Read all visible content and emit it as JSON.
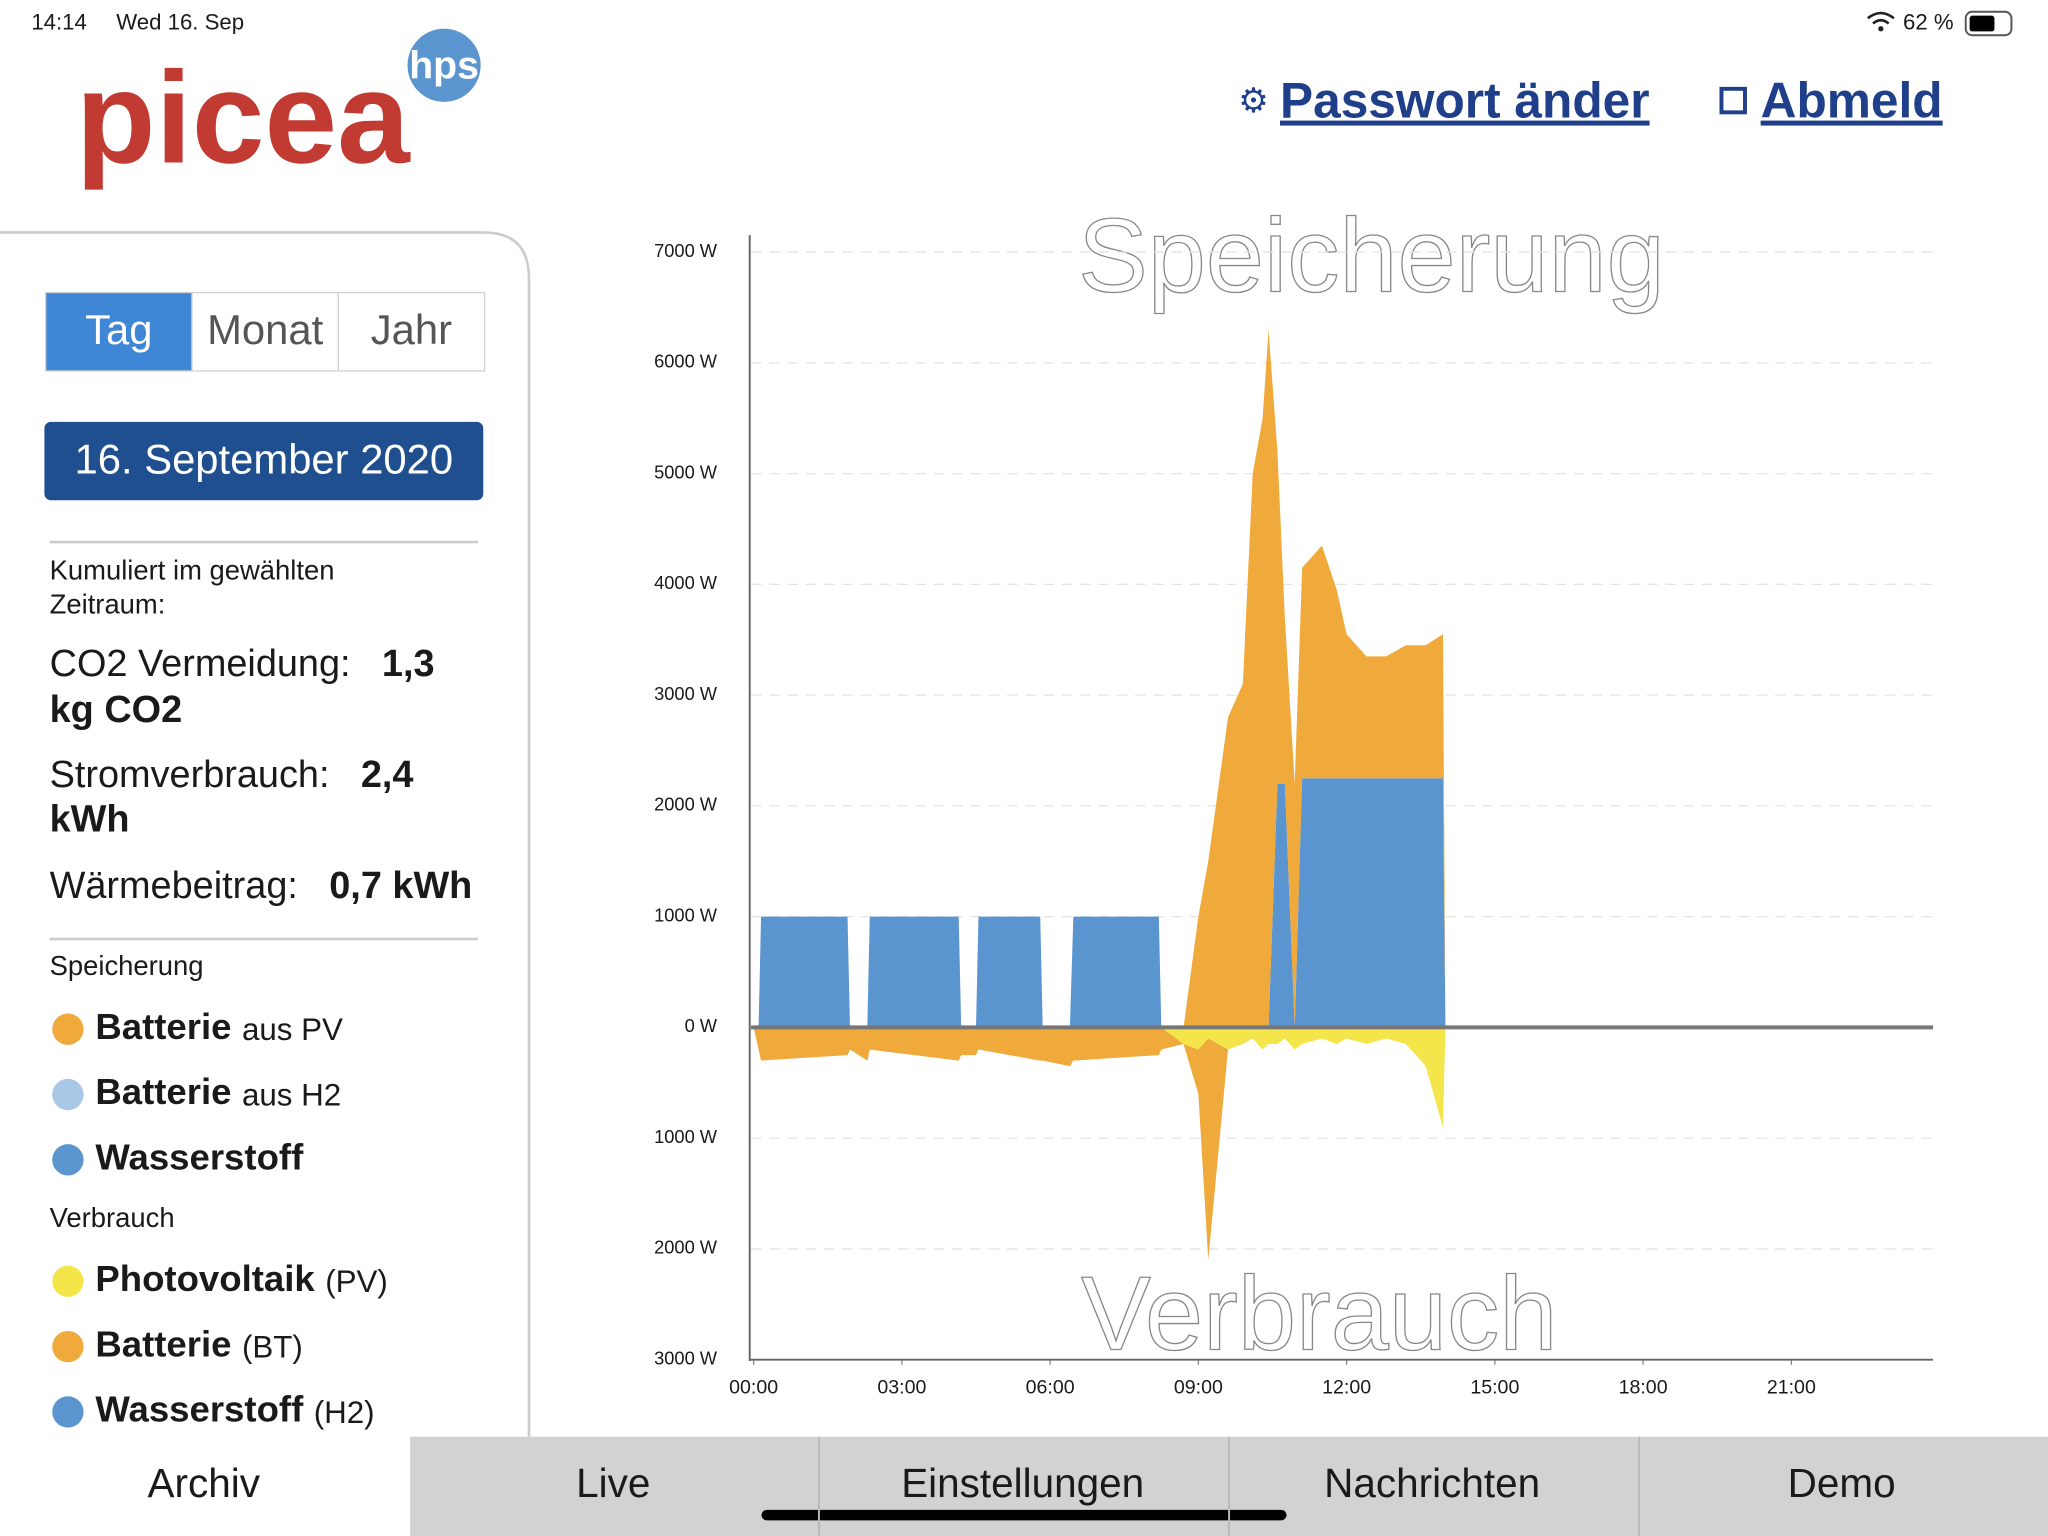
{
  "status_bar": {
    "time": "14:14",
    "date": "Wed 16. Sep",
    "battery": "62 %"
  },
  "header": {
    "logo": "picea",
    "logo_badge": "hps",
    "links": [
      "Passwort änder",
      "Abmeld"
    ]
  },
  "sidebar": {
    "tabs": [
      "Tag",
      "Monat",
      "Jahr"
    ],
    "date": "16. September 2020",
    "summary_label": [
      "Kumuliert im gewählten",
      "Zeitraum:"
    ],
    "stats": [
      {
        "label": "CO2 Vermeidung:",
        "value": "1,3",
        "unit": "kg CO2"
      },
      {
        "label": "Stromverbrauch:",
        "value": "2,4",
        "unit": "kWh"
      },
      {
        "label": "Wärmebeitrag:",
        "value": "0,7 kWh"
      }
    ],
    "legend_groups": [
      {
        "title": "Speicherung",
        "items": [
          {
            "name": "Batterie",
            "detail": "aus PV",
            "color": "#f0a93b"
          },
          {
            "name": "Batterie",
            "detail": "aus H2",
            "color": "#a9c8e8"
          },
          {
            "name": "Wasserstoff",
            "color": "#5b95d0"
          }
        ]
      },
      {
        "title": "Verbrauch",
        "items": [
          {
            "name": "Photovoltaik",
            "detail": "(PV)",
            "color": "#f4e64a"
          },
          {
            "name": "Batterie",
            "detail": "(BT)",
            "color": "#f0a93b"
          },
          {
            "name": "Wasserstoff",
            "detail": "(H2)",
            "color": "#5b95d0"
          }
        ]
      }
    ]
  },
  "chart_data": {
    "type": "area",
    "title": "Speicherung",
    "bottom_label": "Verbrauch",
    "grid": true,
    "xlim": [
      0,
      24
    ],
    "xticks": [
      {
        "value": 0,
        "label": "00:00"
      },
      {
        "value": 3,
        "label": "03:00"
      },
      {
        "value": 6,
        "label": "06:00"
      },
      {
        "value": 9,
        "label": "09:00"
      },
      {
        "value": 12,
        "label": "12:00"
      },
      {
        "value": 15,
        "label": "15:00"
      },
      {
        "value": 18,
        "label": "18:00"
      },
      {
        "value": 21,
        "label": "21:00"
      }
    ],
    "ylim": [
      -3000,
      7000
    ],
    "yticks": [
      {
        "value": -3000,
        "label": "3000 W"
      },
      {
        "value": -2000,
        "label": "2000 W"
      },
      {
        "value": -1000,
        "label": "1000 W"
      },
      {
        "value": 0,
        "label": "0 W"
      },
      {
        "value": 1000,
        "label": "1000 W"
      },
      {
        "value": 2000,
        "label": "2000 W"
      },
      {
        "value": 3000,
        "label": "3000 W"
      },
      {
        "value": 4000,
        "label": "4000 W"
      },
      {
        "value": 5000,
        "label": "5000 W"
      },
      {
        "value": 6000,
        "label": "6000 W"
      },
      {
        "value": 7000,
        "label": "7000 W"
      }
    ],
    "x": [
      0,
      0.1,
      0.15,
      1.9,
      1.95,
      2.3,
      2.35,
      4.15,
      4.2,
      4.5,
      4.55,
      5.8,
      5.85,
      6.4,
      6.47,
      8.2,
      8.25,
      8.7,
      9.0,
      9.2,
      9.6,
      9.9,
      10.1,
      10.3,
      10.42,
      10.6,
      10.75,
      10.95,
      11.1,
      11.5,
      11.8,
      12.0,
      12.4,
      12.8,
      13.2,
      13.6,
      13.95,
      14.0
    ],
    "series": [
      {
        "color": "#5b95d0",
        "stack": "up",
        "values": [
          0,
          0,
          1000,
          1000,
          0,
          0,
          1000,
          1000,
          0,
          0,
          1000,
          1000,
          0,
          0,
          1000,
          1000,
          0,
          0,
          0,
          0,
          0,
          0,
          0,
          0,
          0,
          2200,
          2200,
          0,
          2250,
          2250,
          2250,
          2250,
          2250,
          2250,
          2250,
          2250,
          2250,
          0
        ]
      },
      {
        "color": "#f0a93b",
        "stack": "up",
        "values": [
          0,
          0,
          0,
          0,
          0,
          0,
          0,
          0,
          0,
          0,
          0,
          0,
          0,
          0,
          0,
          0,
          0,
          0,
          1000,
          1500,
          2800,
          3100,
          5000,
          5500,
          6300,
          3000,
          1500,
          2200,
          1900,
          2100,
          1700,
          1300,
          1100,
          1100,
          1200,
          1200,
          1300,
          0
        ]
      },
      {
        "color": "#f4e64a",
        "stack": "down",
        "values": [
          0,
          0,
          0,
          0,
          0,
          0,
          0,
          0,
          0,
          0,
          0,
          0,
          0,
          0,
          0,
          0,
          0,
          -150,
          -200,
          -100,
          -200,
          -150,
          -100,
          -200,
          -150,
          -150,
          -100,
          -200,
          -150,
          -100,
          -150,
          -100,
          -150,
          -100,
          -150,
          -350,
          -900,
          0
        ]
      },
      {
        "color": "#f0a93b",
        "stack": "down",
        "values": [
          0,
          -200,
          -300,
          -250,
          -200,
          -300,
          -200,
          -300,
          -250,
          -250,
          -200,
          -300,
          -300,
          -350,
          -300,
          -250,
          -200,
          0,
          -400,
          -2000,
          0,
          0,
          0,
          0,
          0,
          0,
          0,
          0,
          0,
          0,
          0,
          0,
          0,
          0,
          0,
          0,
          0,
          0
        ]
      }
    ]
  },
  "tab_bar": [
    "Archiv",
    "Live",
    "Einstellungen",
    "Nachrichten",
    "Demo"
  ]
}
